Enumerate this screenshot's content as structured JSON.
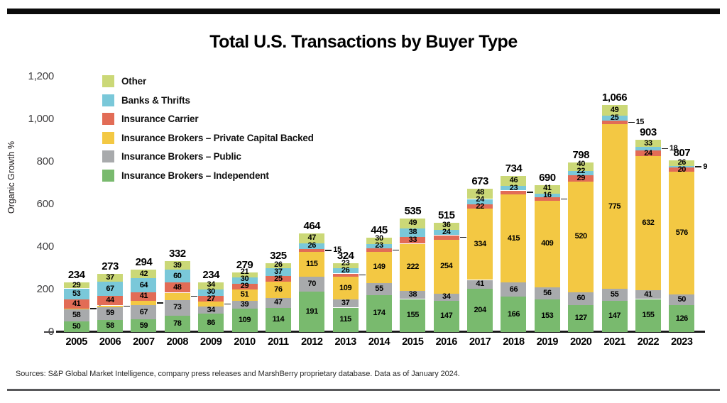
{
  "page": {
    "title": "Total U.S. Transactions by Buyer Type",
    "source_note": "Sources: S&P Global Market Intelligence, company press releases and MarshBerry proprietary database. Data as of January 2024."
  },
  "chart_data": {
    "type": "bar",
    "stacked": true,
    "title": "Total U.S. Transactions by Buyer Type",
    "xlabel": "",
    "ylabel": "Organic Growth %",
    "ylim": [
      0,
      1200
    ],
    "grid": false,
    "legend_position": "upper-left-inside",
    "yticks": [
      0,
      200,
      400,
      600,
      800,
      1000,
      1200
    ],
    "ytick_labels": [
      "0",
      "200",
      "400",
      "600",
      "800",
      "1,000",
      "1,200"
    ],
    "categories": [
      "2005",
      "2006",
      "2007",
      "2008",
      "2009",
      "2010",
      "2011",
      "2012",
      "2013",
      "2014",
      "2015",
      "2016",
      "2017",
      "2018",
      "2019",
      "2020",
      "2021",
      "2022",
      "2023"
    ],
    "totals": [
      234,
      273,
      294,
      332,
      234,
      279,
      325,
      464,
      324,
      445,
      535,
      515,
      673,
      734,
      690,
      798,
      1066,
      903,
      807
    ],
    "series": [
      {
        "name": "Insurance Brokers – Independent",
        "key": "independent",
        "color": "#79ba6e",
        "values": [
          50,
          58,
          59,
          78,
          86,
          109,
          114,
          191,
          115,
          174,
          155,
          147,
          204,
          166,
          153,
          127,
          147,
          155,
          126
        ]
      },
      {
        "name": "Insurance Brokers – Public",
        "key": "public",
        "color": "#a8aaac",
        "values": [
          58,
          59,
          67,
          73,
          34,
          39,
          47,
          70,
          37,
          55,
          38,
          34,
          41,
          66,
          56,
          60,
          55,
          41,
          50
        ]
      },
      {
        "name": "Insurance Brokers – Private Capital Backed",
        "key": "private-capital",
        "color": "#f3c843",
        "values": [
          3,
          8,
          21,
          34,
          23,
          51,
          76,
          115,
          109,
          149,
          222,
          254,
          334,
          415,
          409,
          520,
          775,
          632,
          576
        ]
      },
      {
        "name": "Insurance Carrier",
        "key": "carrier",
        "color": "#e26c56",
        "values": [
          41,
          44,
          41,
          48,
          27,
          29,
          25,
          15,
          14,
          14,
          33,
          20,
          22,
          18,
          15,
          29,
          15,
          24,
          20
        ]
      },
      {
        "name": "Banks & Thrifts",
        "key": "banks",
        "color": "#7ac8d9",
        "values": [
          53,
          67,
          64,
          60,
          30,
          30,
          37,
          26,
          26,
          23,
          38,
          24,
          24,
          23,
          16,
          22,
          25,
          18,
          9
        ]
      },
      {
        "name": "Other",
        "key": "other",
        "color": "#cbd877",
        "values": [
          29,
          37,
          42,
          39,
          34,
          21,
          26,
          47,
          23,
          30,
          49,
          36,
          48,
          46,
          41,
          40,
          49,
          33,
          26
        ]
      }
    ],
    "legend_order_top_to_bottom": [
      "Other",
      "Banks & Thrifts",
      "Insurance Carrier",
      "Insurance Brokers – Private Capital Backed",
      "Insurance Brokers – Public",
      "Insurance Brokers – Independent"
    ],
    "outside_labels": {
      "2005": [
        "private-capital"
      ],
      "2006": [
        "private-capital"
      ],
      "2007": [
        "private-capital"
      ],
      "2008": [
        "private-capital"
      ],
      "2009": [
        "private-capital"
      ],
      "2012": [
        "carrier"
      ],
      "2013": [
        "carrier"
      ],
      "2014": [
        "carrier"
      ],
      "2016": [
        "carrier"
      ],
      "2018": [
        "carrier"
      ],
      "2019": [
        "carrier"
      ],
      "2021": [
        "carrier"
      ],
      "2022": [
        "banks"
      ],
      "2023": [
        "banks"
      ]
    }
  }
}
